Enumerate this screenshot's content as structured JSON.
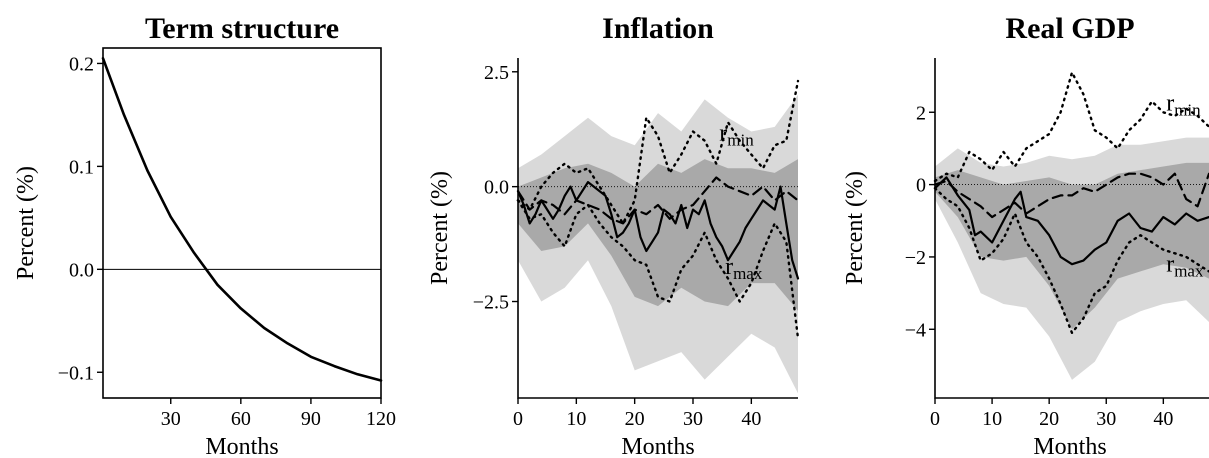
{
  "chart_data": [
    {
      "type": "line",
      "title": "Term structure",
      "xlabel": "Months",
      "ylabel": "Percent (%)",
      "xlim": [
        1,
        120
      ],
      "ylim": [
        -0.125,
        0.215
      ],
      "xticks": [
        30,
        60,
        90,
        120
      ],
      "yticks": [
        0.2,
        0.1,
        0.0,
        -0.1
      ],
      "ytick_labels": [
        "0.2",
        "0.1",
        "0.0",
        "−0.1"
      ],
      "zero_line": "solid",
      "series": [
        {
          "style": "solid",
          "x": [
            1,
            10,
            20,
            30,
            40,
            50,
            60,
            70,
            80,
            90,
            100,
            110,
            120
          ],
          "y": [
            0.205,
            0.15,
            0.096,
            0.051,
            0.016,
            -0.015,
            -0.038,
            -0.057,
            -0.072,
            -0.085,
            -0.094,
            -0.102,
            -0.108
          ]
        }
      ]
    },
    {
      "type": "line",
      "title": "Inflation",
      "xlabel": "Months",
      "ylabel": "Percent (%)",
      "xlim": [
        0,
        48
      ],
      "ylim": [
        -4.6,
        2.8
      ],
      "xticks": [
        0,
        10,
        20,
        30,
        40
      ],
      "yticks": [
        2.5,
        0.0,
        -2.5
      ],
      "ytick_labels": [
        "2.5",
        "0.0",
        "−2.5"
      ],
      "zero_line": "dotted",
      "annotations": [
        {
          "base": "r",
          "sub": "min",
          "x": 34.5,
          "y": 1.0
        },
        {
          "base": "r",
          "sub": "max",
          "x": 35.5,
          "y": -1.9
        }
      ],
      "bands": [
        {
          "shade": "light",
          "x": [
            0,
            4,
            8,
            12,
            16,
            20,
            24,
            28,
            32,
            36,
            40,
            44,
            48
          ],
          "lower": [
            -1.6,
            -2.5,
            -2.2,
            -1.6,
            -2.6,
            -4.0,
            -3.8,
            -3.6,
            -4.2,
            -3.7,
            -3.2,
            -3.5,
            -4.5
          ],
          "upper": [
            0.4,
            0.7,
            1.1,
            1.5,
            1.1,
            0.9,
            1.6,
            1.2,
            1.9,
            1.5,
            1.2,
            1.3,
            2.0
          ]
        },
        {
          "shade": "dark",
          "x": [
            0,
            4,
            8,
            12,
            16,
            20,
            24,
            28,
            32,
            36,
            40,
            44,
            48
          ],
          "lower": [
            -0.8,
            -1.4,
            -1.3,
            -0.8,
            -1.5,
            -2.4,
            -2.6,
            -2.2,
            -2.5,
            -2.6,
            -2.1,
            -2.1,
            -2.7
          ],
          "upper": [
            0.0,
            0.2,
            0.4,
            0.5,
            0.3,
            0.0,
            0.5,
            0.3,
            0.6,
            0.4,
            0.4,
            0.3,
            0.6
          ]
        }
      ],
      "series": [
        {
          "style": "solid",
          "x": [
            0,
            1,
            2,
            3,
            4,
            5,
            6,
            7,
            8,
            9,
            10,
            11,
            12,
            13,
            14,
            15,
            16,
            17,
            18,
            19,
            20,
            21,
            22,
            23,
            24,
            25,
            26,
            27,
            28,
            29,
            30,
            31,
            32,
            33,
            34,
            35,
            36,
            37,
            38,
            39,
            40,
            41,
            42,
            43,
            44,
            45,
            46,
            47,
            48
          ],
          "y": [
            -0.1,
            -0.4,
            -0.8,
            -0.6,
            -0.3,
            -0.5,
            -0.7,
            -0.5,
            -0.2,
            0.0,
            -0.3,
            -0.1,
            0.1,
            0.0,
            -0.1,
            -0.2,
            -0.6,
            -1.1,
            -1.0,
            -0.8,
            -0.5,
            -1.1,
            -1.4,
            -1.2,
            -1.0,
            -0.5,
            -0.6,
            -0.8,
            -0.4,
            -0.9,
            -0.5,
            -0.6,
            -0.3,
            -0.8,
            -1.1,
            -1.3,
            -1.6,
            -1.4,
            -1.2,
            -0.9,
            -0.7,
            -0.5,
            -0.3,
            -0.4,
            -0.5,
            0.0,
            -0.8,
            -1.6,
            -2.0
          ]
        },
        {
          "style": "dashed",
          "x": [
            0,
            2,
            4,
            6,
            8,
            10,
            12,
            14,
            16,
            18,
            20,
            22,
            24,
            26,
            28,
            30,
            32,
            34,
            36,
            38,
            40,
            42,
            44,
            46,
            48
          ],
          "y": [
            -0.1,
            -0.5,
            -0.3,
            -0.4,
            -0.6,
            -0.3,
            -0.4,
            -0.5,
            -0.7,
            -0.8,
            -0.5,
            -0.6,
            -0.4,
            -0.7,
            -0.5,
            -0.4,
            -0.1,
            0.2,
            0.0,
            -0.1,
            -0.2,
            0.0,
            -0.3,
            -0.1,
            -0.3
          ]
        },
        {
          "style": "dotted",
          "x": [
            0,
            2,
            4,
            6,
            8,
            10,
            12,
            14,
            16,
            18,
            20,
            22,
            24,
            26,
            28,
            30,
            32,
            34,
            36,
            38,
            40,
            42,
            44,
            46,
            48
          ],
          "y": [
            -0.3,
            -0.5,
            0.0,
            0.3,
            0.5,
            0.3,
            0.4,
            0.0,
            -0.4,
            -0.8,
            -0.3,
            1.5,
            1.1,
            0.3,
            0.7,
            1.2,
            1.0,
            0.5,
            1.4,
            1.0,
            0.7,
            0.4,
            0.9,
            1.0,
            2.3
          ]
        },
        {
          "style": "dotted",
          "x": [
            0,
            2,
            4,
            6,
            8,
            10,
            12,
            14,
            16,
            18,
            20,
            22,
            24,
            26,
            28,
            30,
            32,
            34,
            36,
            38,
            40,
            42,
            44,
            46,
            48
          ],
          "y": [
            -0.3,
            -0.7,
            -0.6,
            -1.0,
            -1.3,
            -0.6,
            -0.4,
            -0.8,
            -1.1,
            -1.3,
            -1.6,
            -1.7,
            -2.4,
            -2.5,
            -1.8,
            -1.5,
            -1.0,
            -1.6,
            -2.0,
            -2.5,
            -2.1,
            -1.4,
            -0.8,
            -1.2,
            -3.3
          ]
        }
      ]
    },
    {
      "type": "line",
      "title": "Real GDP",
      "xlabel": "Months",
      "ylabel": "Percent (%)",
      "xlim": [
        0,
        48
      ],
      "ylim": [
        -5.9,
        3.5
      ],
      "xticks": [
        0,
        10,
        20,
        30,
        40
      ],
      "yticks": [
        2,
        0,
        -2,
        -4
      ],
      "ytick_labels": [
        "2",
        "0",
        "−2",
        "−4"
      ],
      "zero_line": "dotted",
      "annotations": [
        {
          "base": "r",
          "sub": "min",
          "x": 40.5,
          "y": 2.05
        },
        {
          "base": "r",
          "sub": "max",
          "x": 40.5,
          "y": -2.4
        }
      ],
      "bands": [
        {
          "shade": "light",
          "x": [
            0,
            4,
            8,
            12,
            16,
            20,
            24,
            28,
            32,
            36,
            40,
            44,
            48
          ],
          "lower": [
            -0.4,
            -1.6,
            -3.0,
            -3.3,
            -3.4,
            -4.2,
            -5.4,
            -4.9,
            -3.8,
            -3.5,
            -3.3,
            -3.2,
            -3.8
          ],
          "upper": [
            0.5,
            1.0,
            0.6,
            0.5,
            0.6,
            0.8,
            0.7,
            0.8,
            1.1,
            1.1,
            1.2,
            1.3,
            1.3
          ]
        },
        {
          "shade": "dark",
          "x": [
            0,
            4,
            8,
            12,
            16,
            20,
            24,
            28,
            32,
            36,
            40,
            44,
            48
          ],
          "lower": [
            -0.2,
            -0.9,
            -2.0,
            -2.1,
            -2.0,
            -2.8,
            -4.0,
            -3.4,
            -2.6,
            -2.4,
            -2.2,
            -2.3,
            -2.6
          ],
          "upper": [
            0.2,
            0.4,
            0.2,
            0.0,
            0.1,
            0.2,
            0.0,
            0.0,
            0.3,
            0.4,
            0.5,
            0.6,
            0.6
          ]
        }
      ],
      "series": [
        {
          "style": "solid",
          "x": [
            0,
            2,
            4,
            6,
            7,
            8,
            10,
            12,
            14,
            15,
            16,
            18,
            20,
            22,
            24,
            26,
            28,
            30,
            32,
            34,
            36,
            38,
            40,
            42,
            44,
            46,
            48
          ],
          "y": [
            -0.1,
            0.2,
            -0.3,
            -0.7,
            -1.4,
            -1.3,
            -1.6,
            -1.0,
            -0.4,
            -0.2,
            -0.9,
            -1.0,
            -1.4,
            -2.0,
            -2.2,
            -2.1,
            -1.8,
            -1.6,
            -1.0,
            -0.8,
            -1.2,
            -1.3,
            -0.9,
            -1.1,
            -0.8,
            -1.0,
            -0.9
          ]
        },
        {
          "style": "dashed",
          "x": [
            0,
            2,
            4,
            6,
            8,
            10,
            12,
            14,
            16,
            18,
            20,
            22,
            24,
            26,
            28,
            30,
            32,
            34,
            36,
            38,
            40,
            42,
            44,
            46,
            48
          ],
          "y": [
            0.0,
            0.1,
            -0.2,
            -0.4,
            -0.6,
            -0.9,
            -0.7,
            -0.5,
            -0.8,
            -0.6,
            -0.4,
            -0.3,
            -0.3,
            -0.1,
            -0.2,
            0.0,
            0.2,
            0.3,
            0.3,
            0.2,
            0.0,
            0.3,
            -0.4,
            -0.6,
            0.3
          ]
        },
        {
          "style": "dotted",
          "x": [
            0,
            2,
            4,
            6,
            8,
            10,
            12,
            14,
            16,
            18,
            20,
            22,
            24,
            26,
            28,
            30,
            32,
            34,
            36,
            38,
            40,
            42,
            44,
            46,
            48
          ],
          "y": [
            0.1,
            0.3,
            0.2,
            0.9,
            0.7,
            0.4,
            0.9,
            0.5,
            1.0,
            1.2,
            1.4,
            2.0,
            3.1,
            2.5,
            1.5,
            1.3,
            1.0,
            1.5,
            1.8,
            2.3,
            2.0,
            1.9,
            2.1,
            1.9,
            1.6
          ]
        },
        {
          "style": "dotted",
          "x": [
            0,
            2,
            4,
            6,
            8,
            10,
            12,
            14,
            16,
            18,
            20,
            22,
            24,
            26,
            28,
            30,
            32,
            34,
            36,
            38,
            40,
            42,
            44,
            46,
            48
          ],
          "y": [
            -0.1,
            -0.4,
            -0.6,
            -1.2,
            -2.1,
            -1.9,
            -1.5,
            -0.8,
            -1.6,
            -2.0,
            -2.6,
            -3.3,
            -4.1,
            -3.7,
            -3.0,
            -2.8,
            -2.1,
            -1.6,
            -1.4,
            -1.6,
            -1.8,
            -1.9,
            -2.0,
            -2.2,
            -2.4
          ]
        }
      ]
    }
  ]
}
